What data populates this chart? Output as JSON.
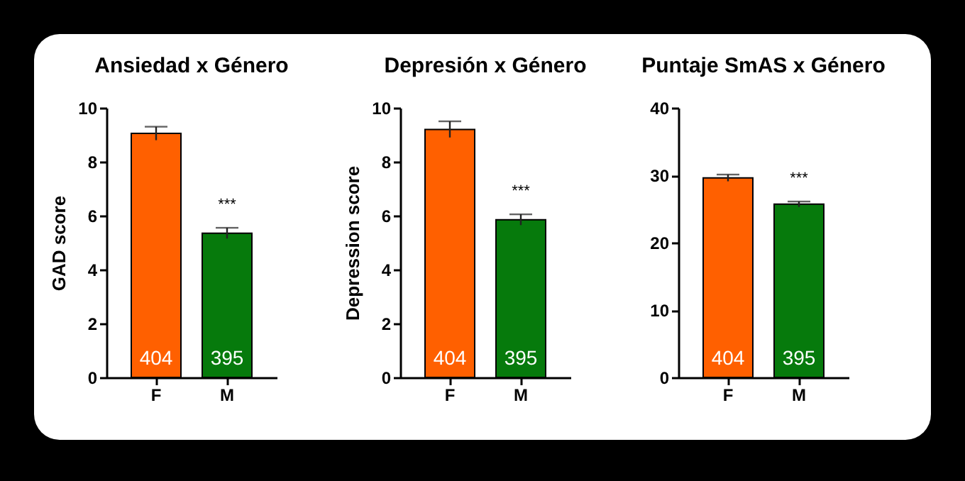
{
  "chart_data": [
    {
      "type": "bar",
      "title": "Ansiedad x Género",
      "ylabel": "GAD score",
      "categories": [
        "F",
        "M"
      ],
      "values": [
        9.05,
        5.35
      ],
      "colors": [
        "#ff6000",
        "#067a0c"
      ],
      "errors": [
        0.25,
        0.2
      ],
      "ylim": [
        0,
        10
      ],
      "yticks": [
        0,
        2,
        4,
        6,
        8,
        10
      ],
      "annotations": [
        "404",
        "395",
        "***"
      ]
    },
    {
      "type": "bar",
      "title": "Depresión x Género",
      "ylabel": "Depression score",
      "categories": [
        "F",
        "M"
      ],
      "values": [
        9.2,
        5.85
      ],
      "colors": [
        "#ff6000",
        "#067a0c"
      ],
      "errors": [
        0.3,
        0.2
      ],
      "ylim": [
        0,
        10
      ],
      "yticks": [
        0,
        2,
        4,
        6,
        8,
        10
      ],
      "annotations": [
        "404",
        "395",
        "***"
      ]
    },
    {
      "type": "bar",
      "title": "Puntaje SmAS x Género",
      "categories": [
        "F",
        "M"
      ],
      "values": [
        29.6,
        25.7
      ],
      "colors": [
        "#ff6000",
        "#067a0c"
      ],
      "errors": [
        0.5,
        0.4
      ],
      "ylim": [
        0,
        40
      ],
      "yticks": [
        0,
        10,
        20,
        30,
        40
      ],
      "annotations": [
        "404",
        "395",
        "***"
      ]
    }
  ]
}
